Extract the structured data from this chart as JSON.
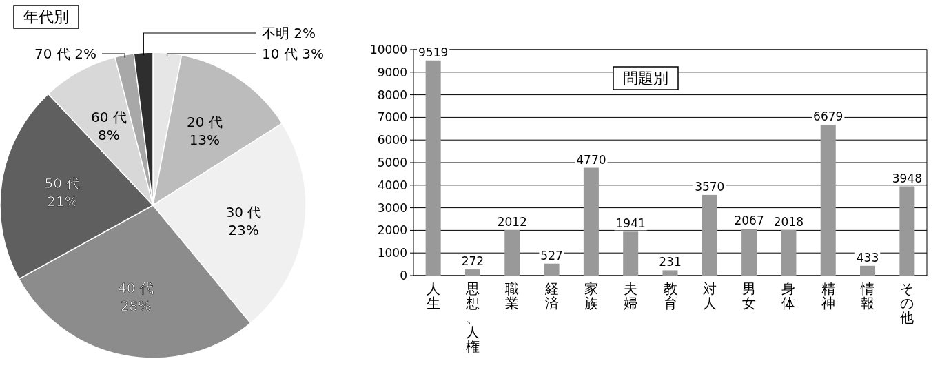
{
  "chart_data": [
    {
      "type": "pie",
      "title": "年代別",
      "categories": [
        "10 代",
        "20 代",
        "30 代",
        "40 代",
        "50 代",
        "60 代",
        "70 代",
        "不明"
      ],
      "values": [
        3,
        13,
        23,
        28,
        21,
        8,
        2,
        2
      ],
      "value_labels": [
        "3%",
        "13%",
        "23%",
        "28%",
        "21%",
        "8%",
        "2%",
        "2%"
      ],
      "colors": [
        "#e6e6e6",
        "#bcbcbc",
        "#f0f0f0",
        "#8c8c8c",
        "#5f5f5f",
        "#d8d8d8",
        "#a8a8a8",
        "#2e2e2e"
      ]
    },
    {
      "type": "bar",
      "title": "問題別",
      "categories": [
        "人生",
        "思想、人権",
        "職業",
        "経済",
        "家族",
        "夫婦",
        "教育",
        "対人",
        "男女",
        "身体",
        "精神",
        "情報",
        "その他"
      ],
      "values": [
        9519,
        272,
        2012,
        527,
        4770,
        1941,
        231,
        3570,
        2067,
        2018,
        6679,
        433,
        3948
      ],
      "color": "#999999",
      "ylim": [
        0,
        10000
      ],
      "yticks": [
        0,
        1000,
        2000,
        3000,
        4000,
        5000,
        6000,
        7000,
        8000,
        9000,
        10000
      ],
      "grid": "y",
      "data_labels": true
    }
  ]
}
